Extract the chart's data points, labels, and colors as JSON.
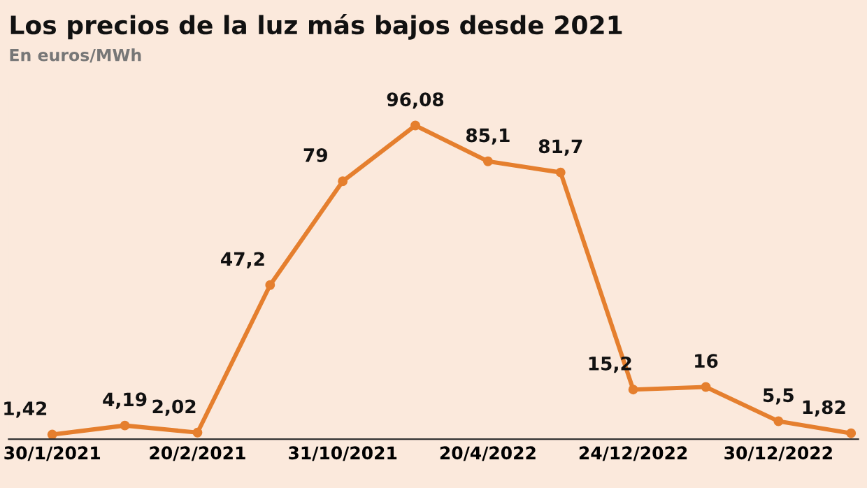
{
  "chart_data": {
    "type": "line",
    "title": "Los precios de la luz más bajos desde 2021",
    "subtitle": "En euros/MWh",
    "categories": [
      "30/1/2021",
      null,
      "20/2/2021",
      null,
      "31/10/2021",
      null,
      "20/4/2022",
      null,
      "24/12/2022",
      null,
      "30/12/2022",
      null
    ],
    "series": [
      {
        "color": "#e57f2e",
        "values": [
          1.42,
          4.19,
          2.02,
          47.2,
          79,
          96.08,
          85.1,
          81.7,
          15.2,
          16,
          5.5,
          1.82
        ],
        "value_labels": [
          "1,42",
          "4,19",
          "2,02",
          "47,2",
          "79",
          "96,08",
          "85,1",
          "81,7",
          "15,2",
          "16",
          "5,5",
          "1,82"
        ]
      }
    ],
    "marker": "circle",
    "grid": false,
    "legend": false,
    "tick_labels": "x"
  }
}
